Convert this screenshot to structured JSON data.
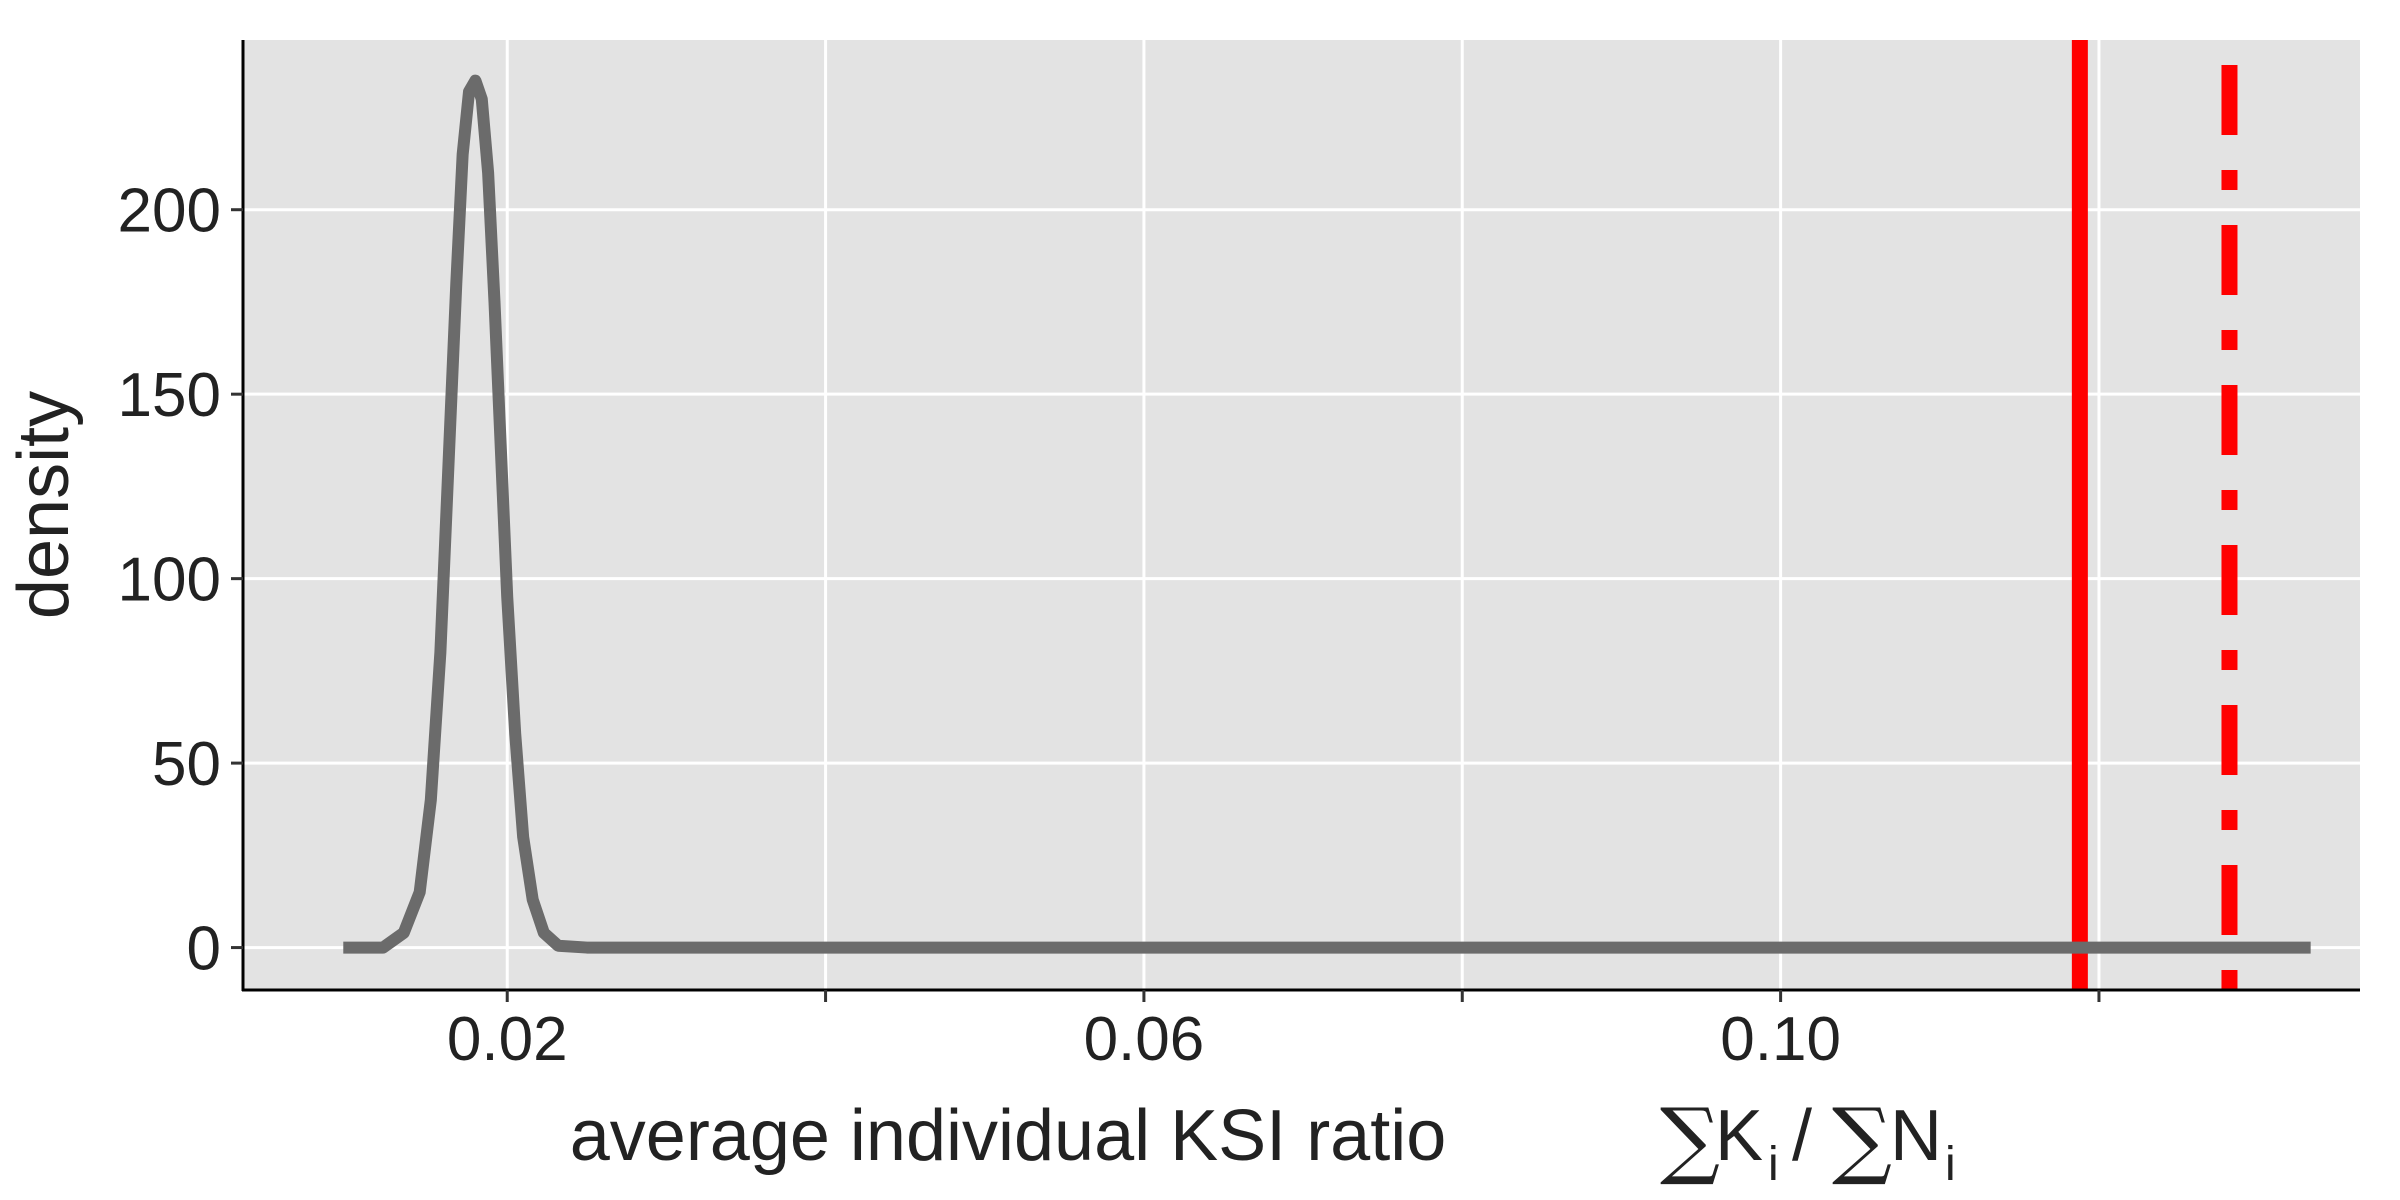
{
  "chart_data": {
    "type": "line",
    "xlabel": {
      "text": "average individual KSI ratio",
      "formula_sum_symbol": "∑",
      "numerator_var": "K",
      "numerator_sub": "i",
      "divider": "/",
      "denominator_var": "N",
      "denominator_sub": "i"
    },
    "ylabel": "density",
    "xlim": [
      0.0034,
      0.1364
    ],
    "ylim": [
      -11.5,
      246
    ],
    "x_ticks": [
      0.02,
      0.06,
      0.1
    ],
    "x_tick_labels": [
      "0.02",
      "0.06",
      "0.10"
    ],
    "x_minor_ticks": [
      0.04,
      0.08,
      0.12
    ],
    "y_ticks": [
      0,
      50,
      100,
      150,
      200
    ],
    "y_tick_labels": [
      "0",
      "50",
      "100",
      "150",
      "200"
    ],
    "grid": true,
    "panel_background": "#e3e3e3",
    "grid_color": "#ffffff",
    "series": [
      {
        "color": "#6b6b6b",
        "x": [
          0.0097,
          0.0122,
          0.0135,
          0.0145,
          0.0152,
          0.0158,
          0.0163,
          0.0168,
          0.0172,
          0.0176,
          0.018,
          0.0184,
          0.0188,
          0.0192,
          0.0196,
          0.02,
          0.0205,
          0.021,
          0.0216,
          0.0223,
          0.0232,
          0.025,
          0.03,
          0.05,
          0.08,
          0.11,
          0.1333
        ],
        "y": [
          0,
          0,
          4,
          15,
          40,
          80,
          130,
          180,
          215,
          232,
          235,
          230,
          210,
          175,
          135,
          95,
          58,
          30,
          13,
          4,
          0.5,
          0,
          0,
          0,
          0,
          0,
          0
        ]
      }
    ],
    "vlines": [
      {
        "x": 0.1188,
        "color": "#ff0000",
        "style": "solid"
      },
      {
        "x": 0.1282,
        "color": "#ff0000",
        "style": "dashdot"
      }
    ]
  }
}
